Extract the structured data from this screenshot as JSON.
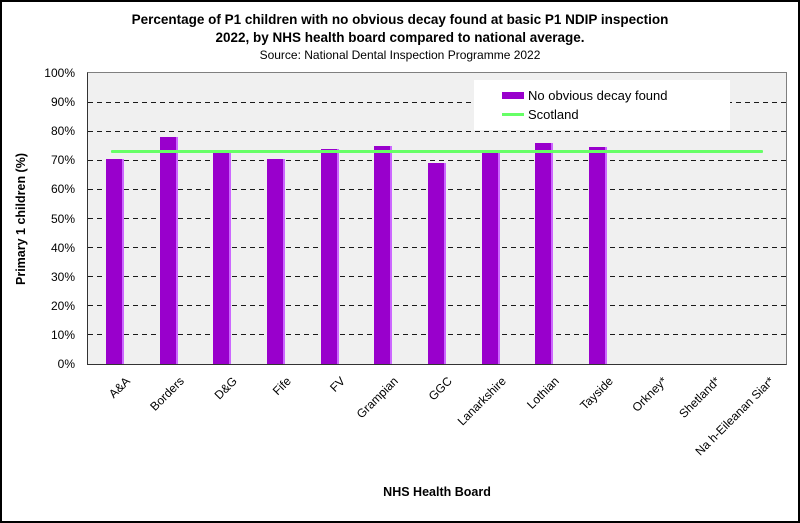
{
  "figure": {
    "title_lines": [
      "Percentage of P1 children with no obvious decay found at basic P1 NDIP inspection",
      "2022, by NHS health board compared to national average."
    ],
    "subtitle": "Source: National Dental Inspection Programme 2022"
  },
  "chart_data": {
    "type": "bar",
    "title": "Percentage of P1 children with no obvious decay found at basic P1 NDIP inspection 2022, by NHS health board compared to national average.",
    "subtitle": "Source: National Dental Inspection Programme 2022",
    "xlabel": "NHS Health Board",
    "ylabel": "Primary 1 children (%)",
    "ylim": [
      0,
      100
    ],
    "ytick_step": 10,
    "ytick_suffix": "%",
    "grid": "horizontal-dashed",
    "legend_position": "top-right-inside",
    "categories": [
      "A&A",
      "Borders",
      "D&G",
      "Fife",
      "FV",
      "Grampian",
      "GGC",
      "Lanarkshire",
      "Lothian",
      "Tayside",
      "Orkney*",
      "Shetland*",
      "Na h-Eileanan Siar*"
    ],
    "series": [
      {
        "name": "No obvious decay found",
        "type": "bar",
        "color": "#9900CC",
        "values": [
          70.5,
          78,
          72.5,
          70.6,
          74,
          75,
          69.2,
          73.7,
          76,
          74.5,
          null,
          null,
          null
        ]
      },
      {
        "name": "Scotland",
        "type": "line",
        "color": "#66FF66",
        "value": 73
      }
    ]
  }
}
